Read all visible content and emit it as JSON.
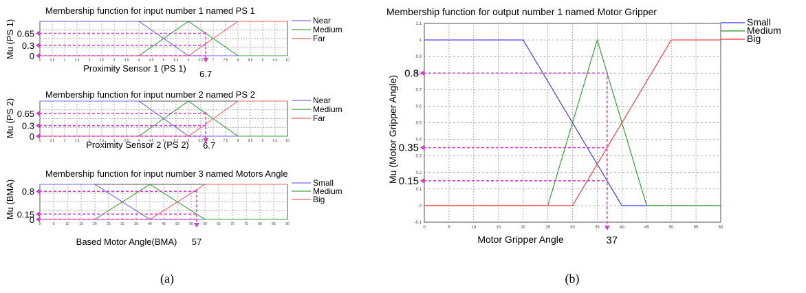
{
  "panel_labels": [
    "(a)",
    "(b)"
  ],
  "chart_data": [
    {
      "type": "line",
      "title": "Membership function for input number 1 named PS 1",
      "xlabel": "Proximity Sensor 1 (PS 1)",
      "ylabel": "Mu (PS 1)",
      "xlim": [
        0,
        10
      ],
      "ylim": [
        0,
        1
      ],
      "x_ticks": [
        "0",
        "0.5",
        "1",
        "1.5",
        "2",
        "2.5",
        "3",
        "3.5",
        "4",
        "4.5",
        "5",
        "5.5",
        "6",
        "6.5",
        "7",
        "7.5",
        "8",
        "8.5",
        "9",
        "9.5",
        "10"
      ],
      "grid": true,
      "legend_position": "right",
      "series": [
        {
          "name": "Near",
          "color": "#6a6af0",
          "points": [
            [
              0,
              1
            ],
            [
              4,
              1
            ],
            [
              6,
              0
            ],
            [
              10,
              0
            ]
          ]
        },
        {
          "name": "Medium",
          "color": "#3ca03c",
          "points": [
            [
              0,
              0
            ],
            [
              4,
              0
            ],
            [
              6,
              1
            ],
            [
              8,
              0
            ],
            [
              10,
              0
            ]
          ]
        },
        {
          "name": "Far",
          "color": "#f06464",
          "points": [
            [
              0,
              0
            ],
            [
              6,
              0
            ],
            [
              8,
              1
            ],
            [
              10,
              1
            ]
          ]
        }
      ],
      "readout": {
        "x": 6.7,
        "x_label": "6.7",
        "y_levels": [
          0.65,
          0.3,
          0
        ],
        "y_labels": [
          "0.65",
          "0.3",
          "0"
        ]
      }
    },
    {
      "type": "line",
      "title": "Membership function for input number 2 named PS 2",
      "xlabel": "Proximity Sensor 2 (PS 2)",
      "ylabel": "Mu (PS 2)",
      "xlim": [
        0,
        10
      ],
      "ylim": [
        0,
        1
      ],
      "x_ticks": [
        "0",
        "0.5",
        "1",
        "1.5",
        "2",
        "2.5",
        "3",
        "3.5",
        "4",
        "4.5",
        "5",
        "5.5",
        "6",
        "6.5",
        "7",
        "7.5",
        "8",
        "8.5",
        "9",
        "9.5",
        "10"
      ],
      "grid": true,
      "legend_position": "right",
      "series": [
        {
          "name": "Near",
          "color": "#6a6af0",
          "points": [
            [
              0,
              1
            ],
            [
              4,
              1
            ],
            [
              6,
              0
            ],
            [
              10,
              0
            ]
          ]
        },
        {
          "name": "Medium",
          "color": "#3ca03c",
          "points": [
            [
              0,
              0
            ],
            [
              4,
              0
            ],
            [
              6,
              1
            ],
            [
              8,
              0
            ],
            [
              10,
              0
            ]
          ]
        },
        {
          "name": "Far",
          "color": "#f06464",
          "points": [
            [
              0,
              0
            ],
            [
              6,
              0
            ],
            [
              8,
              1
            ],
            [
              10,
              1
            ]
          ]
        }
      ],
      "readout": {
        "x": 6.7,
        "x_label": "6.7",
        "y_levels": [
          0.65,
          0.3,
          0
        ],
        "y_labels": [
          "0.65",
          "0.3",
          "0"
        ]
      }
    },
    {
      "type": "line",
      "title": "Membership function for input number 3 named Motors Angle",
      "xlabel": "Based Motor Angle(BMA)",
      "ylabel": "Mu (BMA)",
      "xlim": [
        0,
        90
      ],
      "ylim": [
        0,
        1
      ],
      "x_ticks": [
        "0",
        "5",
        "10",
        "15",
        "20",
        "25",
        "30",
        "35",
        "40",
        "45",
        "50",
        "55",
        "60",
        "65",
        "70",
        "75",
        "80",
        "85",
        "90"
      ],
      "grid": true,
      "legend_position": "right",
      "series": [
        {
          "name": "Small",
          "color": "#6a6af0",
          "points": [
            [
              0,
              1
            ],
            [
              20,
              1
            ],
            [
              40,
              0
            ],
            [
              90,
              0
            ]
          ]
        },
        {
          "name": "Medium",
          "color": "#3ca03c",
          "points": [
            [
              0,
              0
            ],
            [
              20,
              0
            ],
            [
              40,
              1
            ],
            [
              60,
              0
            ],
            [
              90,
              0
            ]
          ]
        },
        {
          "name": "Big",
          "color": "#f06464",
          "points": [
            [
              0,
              0
            ],
            [
              40,
              0
            ],
            [
              60,
              1
            ],
            [
              90,
              1
            ]
          ]
        }
      ],
      "readout": {
        "x": 57,
        "x_label": "57",
        "y_levels": [
          0.8,
          0.15,
          0
        ],
        "y_labels": [
          "0.8",
          "0.15",
          "0"
        ]
      }
    },
    {
      "type": "line",
      "title": "Membership function for output number 1 named Motor Gripper",
      "xlabel": "Motor Gripper Angle",
      "ylabel": "Mu (Motor Gripper Angle)",
      "xlim": [
        0,
        60
      ],
      "ylim": [
        -0.1,
        1.1
      ],
      "x_ticks": [
        "0",
        "5",
        "10",
        "15",
        "20",
        "25",
        "30",
        "35",
        "40",
        "45",
        "50",
        "55",
        "60"
      ],
      "y_ticks": [
        "-0.1",
        "0",
        "0.1",
        "0.2",
        "0.3",
        "0.4",
        "0.5",
        "0.6",
        "0.7",
        "0.8",
        "0.9",
        "1",
        "1.1"
      ],
      "grid": true,
      "legend_position": "top-right",
      "series": [
        {
          "name": "Small",
          "color": "#2b2bff",
          "points": [
            [
              0,
              1
            ],
            [
              20,
              1
            ],
            [
              40,
              0
            ],
            [
              60,
              0
            ]
          ]
        },
        {
          "name": "Medium",
          "color": "#1f9a1f",
          "points": [
            [
              0,
              0
            ],
            [
              25,
              0
            ],
            [
              35,
              1
            ],
            [
              45,
              0
            ],
            [
              60,
              0
            ]
          ]
        },
        {
          "name": "Big",
          "color": "#ff2b2b",
          "points": [
            [
              0,
              0
            ],
            [
              30,
              0
            ],
            [
              50,
              1
            ],
            [
              60,
              1
            ]
          ]
        }
      ],
      "readout": {
        "x": 37,
        "x_label": "37",
        "y_levels": [
          0.8,
          0.35,
          0.15
        ],
        "y_labels": [
          "0.8",
          "0.35",
          "0.15"
        ]
      }
    }
  ],
  "colors": {
    "readout": "#d63cd6",
    "grid": "#8a8a8a"
  }
}
